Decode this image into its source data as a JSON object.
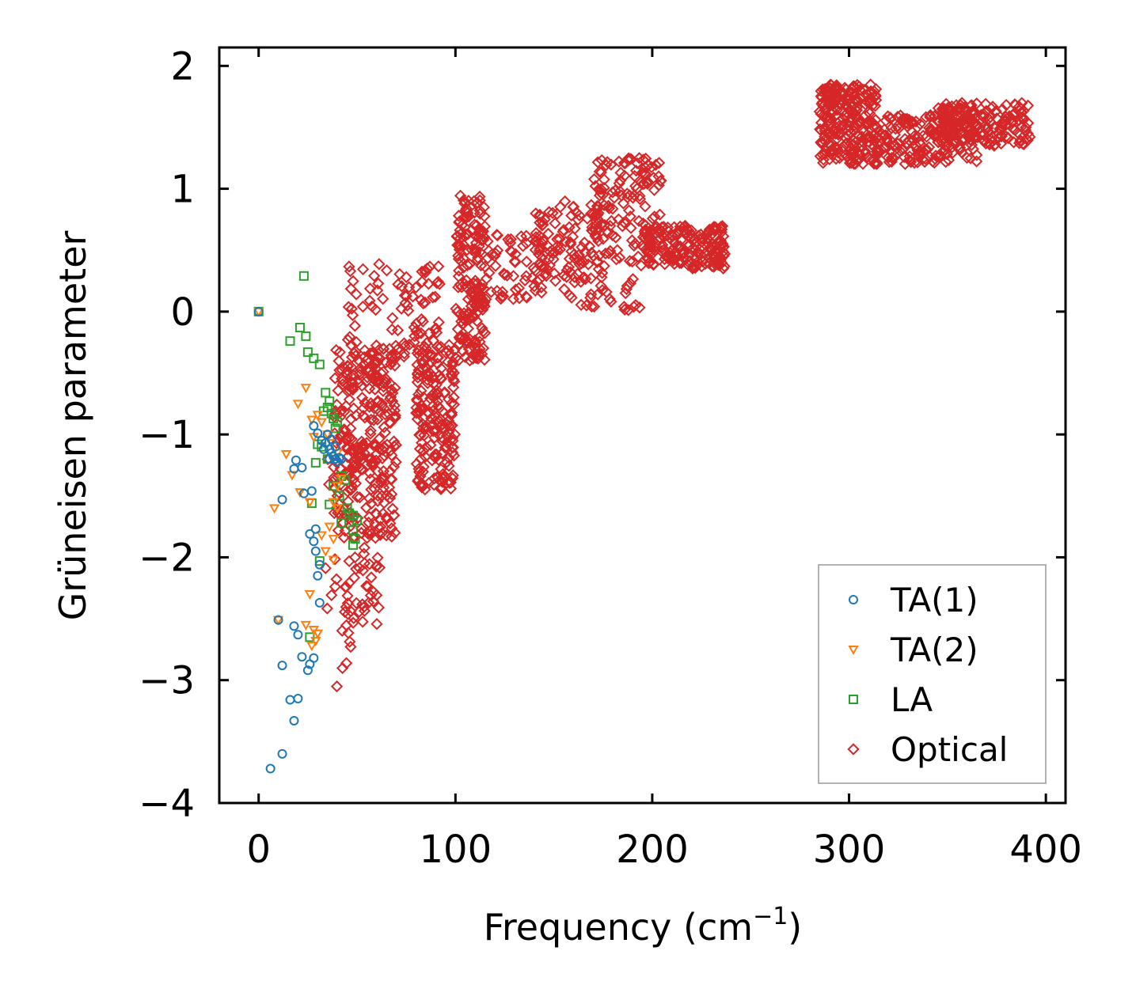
{
  "chart_data": {
    "type": "scatter",
    "title": "",
    "xlabel": "Frequency (cm",
    "xlabel_sup": "−1",
    "xlabel_close": ")",
    "ylabel": "Grüneisen parameter",
    "xlim": [
      -20,
      410
    ],
    "ylim": [
      -4,
      2.15
    ],
    "xticks": [
      0,
      100,
      200,
      300,
      400
    ],
    "xtick_labels": [
      "0",
      "100",
      "200",
      "300",
      "400"
    ],
    "yticks": [
      -4,
      -3,
      -2,
      -1,
      0,
      1,
      2
    ],
    "ytick_labels": [
      "−4",
      "−3",
      "−2",
      "−1",
      "0",
      "1",
      "2"
    ],
    "grid": false,
    "legend_position": "bottom-right",
    "series": [
      {
        "name": "TA(1)",
        "marker": "circle",
        "color": "#1f77b4",
        "points": [
          [
            0,
            0
          ],
          [
            6,
            -3.72
          ],
          [
            12,
            -3.6
          ],
          [
            18,
            -3.33
          ],
          [
            16,
            -3.16
          ],
          [
            20,
            -3.15
          ],
          [
            12,
            -2.88
          ],
          [
            22,
            -2.81
          ],
          [
            25,
            -2.92
          ],
          [
            26,
            -2.87
          ],
          [
            28,
            -2.82
          ],
          [
            20,
            -2.63
          ],
          [
            18,
            -2.56
          ],
          [
            10,
            -2.51
          ],
          [
            31,
            -2.37
          ],
          [
            30,
            -2.15
          ],
          [
            31,
            -2.06
          ],
          [
            29,
            -1.95
          ],
          [
            28,
            -1.87
          ],
          [
            26,
            -1.81
          ],
          [
            29,
            -1.77
          ],
          [
            18,
            -1.28
          ],
          [
            19,
            -1.21
          ],
          [
            22,
            -1.27
          ],
          [
            23,
            -1.48
          ],
          [
            27,
            -1.46
          ],
          [
            12,
            -1.53
          ],
          [
            28,
            -0.93
          ],
          [
            30,
            -0.99
          ],
          [
            32,
            -1.05
          ],
          [
            34,
            -1.07
          ],
          [
            36,
            -1.12
          ],
          [
            37,
            -1.15
          ],
          [
            38,
            -1.18
          ],
          [
            39,
            -1.2
          ],
          [
            40,
            -1.22
          ],
          [
            41,
            -1.19
          ],
          [
            42,
            -1.2
          ],
          [
            35,
            -1.0
          ],
          [
            37,
            -1.04
          ],
          [
            39,
            -1.1
          ],
          [
            33,
            -1.12
          ],
          [
            36,
            -1.2
          ]
        ]
      },
      {
        "name": "TA(2)",
        "marker": "triangle-down",
        "color": "#ff7f0e",
        "points": [
          [
            0,
            0
          ],
          [
            24,
            -0.62
          ],
          [
            20,
            -0.75
          ],
          [
            27,
            -0.88
          ],
          [
            30,
            -0.84
          ],
          [
            32,
            -0.9
          ],
          [
            28,
            -1.02
          ],
          [
            14,
            -1.16
          ],
          [
            17,
            -1.33
          ],
          [
            21,
            -1.47
          ],
          [
            26,
            -1.55
          ],
          [
            8,
            -1.6
          ],
          [
            35,
            -1.0
          ],
          [
            37,
            -1.07
          ],
          [
            40,
            -1.15
          ],
          [
            42,
            -1.36
          ],
          [
            40,
            -1.42
          ],
          [
            38,
            -1.55
          ],
          [
            40,
            -1.6
          ],
          [
            36,
            -1.75
          ],
          [
            32,
            -1.82
          ],
          [
            38,
            -1.85
          ],
          [
            34,
            -1.95
          ],
          [
            38,
            -2.02
          ],
          [
            26,
            -2.3
          ],
          [
            28,
            -2.59
          ],
          [
            30,
            -2.62
          ],
          [
            29,
            -2.68
          ],
          [
            27,
            -2.72
          ],
          [
            10,
            -2.51
          ],
          [
            24,
            -2.55
          ],
          [
            30,
            -2.62
          ]
        ]
      },
      {
        "name": "LA",
        "marker": "square",
        "color": "#2ca02c",
        "points": [
          [
            0,
            0
          ],
          [
            23,
            0.29
          ],
          [
            21,
            -0.13
          ],
          [
            24,
            -0.2
          ],
          [
            16,
            -0.24
          ],
          [
            25,
            -0.33
          ],
          [
            28,
            -0.38
          ],
          [
            31,
            -0.43
          ],
          [
            34,
            -0.66
          ],
          [
            36,
            -0.73
          ],
          [
            35,
            -0.78
          ],
          [
            37,
            -0.83
          ],
          [
            33,
            -0.81
          ],
          [
            38,
            -0.87
          ],
          [
            39,
            -0.95
          ],
          [
            40,
            -0.9
          ],
          [
            30,
            -1.08
          ],
          [
            32,
            -1.1
          ],
          [
            29,
            -1.23
          ],
          [
            35,
            -1.2
          ],
          [
            42,
            -1.34
          ],
          [
            44,
            -1.37
          ],
          [
            38,
            -1.42
          ],
          [
            41,
            -1.5
          ],
          [
            27,
            -1.56
          ],
          [
            36,
            -1.57
          ],
          [
            45,
            -1.6
          ],
          [
            46,
            -1.64
          ],
          [
            48,
            -1.66
          ],
          [
            50,
            -1.7
          ],
          [
            42,
            -1.72
          ],
          [
            48,
            -1.78
          ],
          [
            49,
            -1.85
          ],
          [
            48,
            -1.9
          ],
          [
            31,
            -2.03
          ],
          [
            26,
            -2.65
          ]
        ]
      },
      {
        "name": "Optical",
        "marker": "diamond",
        "color": "#d62728",
        "clusters": [
          {
            "x": [
              32,
              50
            ],
            "y": [
              -3.1,
              -0.95
            ],
            "n": 30
          },
          {
            "x": [
              38,
              70
            ],
            "y": [
              -1.85,
              -0.3
            ],
            "n": 300
          },
          {
            "x": [
              44,
              62
            ],
            "y": [
              -2.55,
              -1.9
            ],
            "n": 35
          },
          {
            "x": [
              45,
              72
            ],
            "y": [
              -0.55,
              0.45
            ],
            "n": 45
          },
          {
            "x": [
              70,
              92
            ],
            "y": [
              -0.4,
              0.4
            ],
            "n": 55
          },
          {
            "x": [
              80,
              100
            ],
            "y": [
              -1.45,
              -0.25
            ],
            "n": 190
          },
          {
            "x": [
              100,
              115
            ],
            "y": [
              -0.4,
              0.95
            ],
            "n": 170
          },
          {
            "x": [
              112,
              145
            ],
            "y": [
              0.1,
              0.65
            ],
            "n": 60
          },
          {
            "x": [
              140,
              175
            ],
            "y": [
              0.1,
              0.9
            ],
            "n": 110
          },
          {
            "x": [
              160,
              195
            ],
            "y": [
              0.0,
              0.45
            ],
            "n": 30
          },
          {
            "x": [
              170,
              205
            ],
            "y": [
              0.4,
              1.25
            ],
            "n": 130
          },
          {
            "x": [
              195,
              237
            ],
            "y": [
              0.35,
              0.7
            ],
            "n": 180
          },
          {
            "x": [
              285,
              315
            ],
            "y": [
              1.2,
              1.85
            ],
            "n": 260
          },
          {
            "x": [
              315,
              365
            ],
            "y": [
              1.2,
              1.6
            ],
            "n": 170
          },
          {
            "x": [
              345,
              392
            ],
            "y": [
              1.35,
              1.7
            ],
            "n": 180
          }
        ]
      }
    ]
  }
}
